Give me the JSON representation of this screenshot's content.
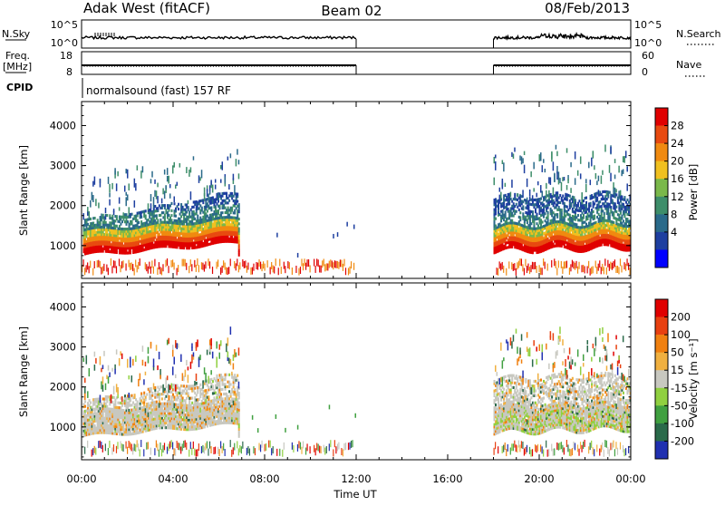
{
  "header": {
    "station": "Adak West (fitACF)",
    "beam": "Beam 02",
    "date": "08/Feb/2013"
  },
  "aux_panels": {
    "nsky_label": "N.Sky",
    "nsearch_label": "N.Search",
    "nsky_ticks": [
      "10^5",
      "10^0"
    ],
    "freq_label_top": "Freq.",
    "freq_label_unit": "[MHz]",
    "freq_ticks": [
      "18",
      "8"
    ],
    "nave_label": "Nave",
    "nave_ticks": [
      "60",
      "0"
    ],
    "cpid_label": "CPID",
    "cpid_text": "normalsound (fast) 157 RF"
  },
  "chart_data": [
    {
      "type": "heatmap",
      "name_shown": "Power",
      "ylabel": "Slant Range [km]",
      "xlabel": "",
      "x_tick_labels": [
        "00:00",
        "04:00",
        "08:00",
        "12:00",
        "16:00",
        "20:00",
        "00:00"
      ],
      "y_tick_labels": [
        "1000",
        "2000",
        "3000",
        "4000"
      ],
      "ylim": [
        180,
        4600
      ],
      "xlim_hours": [
        0,
        24
      ],
      "data_gap_hours": [
        12,
        18
      ],
      "colorbar_label": "Power [dB]",
      "colorbar_ticks": [
        "28",
        "24",
        "20",
        "16",
        "12",
        "8",
        "4"
      ],
      "colors": [
        "#0000ff",
        "#1e3fa0",
        "#2a6a8a",
        "#3e8e6a",
        "#7ab84a",
        "#f0c020",
        "#f08a10",
        "#e84a10",
        "#e00000"
      ]
    },
    {
      "type": "heatmap",
      "name_shown": "Velocity",
      "ylabel": "Slant Range [km]",
      "xlabel": "Time UT",
      "x_tick_labels": [
        "00:00",
        "04:00",
        "08:00",
        "12:00",
        "16:00",
        "20:00",
        "00:00"
      ],
      "y_tick_labels": [
        "1000",
        "2000",
        "3000",
        "4000"
      ],
      "ylim": [
        180,
        4600
      ],
      "xlim_hours": [
        0,
        24
      ],
      "data_gap_hours": [
        12,
        18
      ],
      "colorbar_label": "Velocity [m s⁻¹]",
      "colorbar_ticks": [
        "200",
        "100",
        "50",
        "15",
        "-15",
        "-50",
        "-100",
        "-200"
      ],
      "colors": [
        "#2030b0",
        "#2a6a4a",
        "#40a040",
        "#90d040",
        "#c8c8c0",
        "#f0b040",
        "#f08010",
        "#e84010",
        "#e00000"
      ]
    }
  ]
}
